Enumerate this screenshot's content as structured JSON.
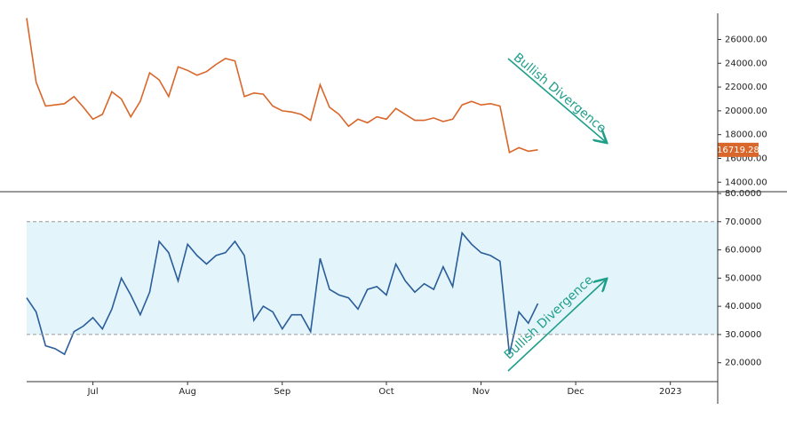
{
  "chart_data": [
    {
      "type": "line",
      "color": "#d9662a",
      "values": [
        27800,
        22400,
        20400,
        20500,
        20600,
        21200,
        20300,
        19300,
        19700,
        21600,
        21000,
        19500,
        20800,
        23200,
        22600,
        21200,
        23700,
        23400,
        23000,
        23300,
        23900,
        24400,
        24200,
        21200,
        21500,
        21400,
        20400,
        20000,
        19900,
        19700,
        19200,
        22200,
        20300,
        19700,
        18700,
        19300,
        19000,
        19500,
        19300,
        20200,
        19700,
        19200,
        19200,
        19400,
        19100,
        19300,
        20500,
        20800,
        20500,
        20600,
        20400,
        16500,
        16900,
        16600,
        16719.28,
        null,
        null,
        null,
        null,
        null,
        null,
        null,
        null,
        null,
        null,
        null,
        null,
        null,
        null,
        null,
        null,
        null,
        null,
        null
      ],
      "ylim": [
        13200,
        28200
      ],
      "yticks": [
        {
          "value": 14000,
          "label": "14000.00"
        },
        {
          "value": 16000,
          "label": "16000.00"
        },
        {
          "value": 18000,
          "label": "18000.00"
        },
        {
          "value": 20000,
          "label": "20000.00"
        },
        {
          "value": 22000,
          "label": "22000.00"
        },
        {
          "value": 24000,
          "label": "24000.00"
        },
        {
          "value": 26000,
          "label": "26000.00"
        }
      ],
      "annotation": "Bullish Divergence"
    },
    {
      "type": "line",
      "color": "#2a5d9a",
      "categories": [
        null,
        null,
        null,
        null,
        null,
        null,
        null,
        "Jul",
        null,
        null,
        null,
        null,
        null,
        null,
        null,
        null,
        null,
        "Aug",
        null,
        null,
        null,
        null,
        null,
        null,
        null,
        null,
        null,
        "Sep",
        null,
        null,
        null,
        null,
        null,
        null,
        null,
        null,
        null,
        null,
        "Oct",
        null,
        null,
        null,
        null,
        null,
        null,
        null,
        null,
        null,
        "Nov",
        null,
        null,
        null,
        null,
        null,
        null,
        null,
        null,
        null,
        "Dec",
        null,
        null,
        null,
        null,
        null,
        null,
        null,
        null,
        null,
        "2023",
        null,
        null,
        null,
        null,
        null
      ],
      "values": [
        43,
        38,
        26,
        25,
        23,
        31,
        33,
        36,
        32,
        39,
        50,
        44,
        37,
        45,
        63,
        59,
        49,
        62,
        58,
        55,
        58,
        59,
        63,
        58,
        35,
        40,
        38,
        32,
        37,
        37,
        31,
        57,
        46,
        44,
        43,
        39,
        46,
        47,
        44,
        55,
        49,
        45,
        48,
        46,
        54,
        47,
        66,
        62,
        59,
        58,
        56,
        23,
        38,
        34,
        41,
        null,
        null,
        null,
        null,
        null,
        null,
        null,
        null,
        null,
        null,
        null,
        null,
        null,
        null,
        null,
        null,
        null,
        null,
        null
      ],
      "ylim": [
        13.3,
        80
      ],
      "yticks": [
        {
          "value": 20,
          "label": "20.0000"
        },
        {
          "value": 30,
          "label": "30.0000"
        },
        {
          "value": 40,
          "label": "40.0000"
        },
        {
          "value": 50,
          "label": "50.0000"
        },
        {
          "value": 60,
          "label": "60.0000"
        },
        {
          "value": 70,
          "label": "70.0000"
        },
        {
          "value": 80,
          "label": "80.0000"
        }
      ],
      "band": [
        30,
        70
      ],
      "band_color": "#e3f5fb",
      "annotation": "Bullish Divergence"
    }
  ]
}
